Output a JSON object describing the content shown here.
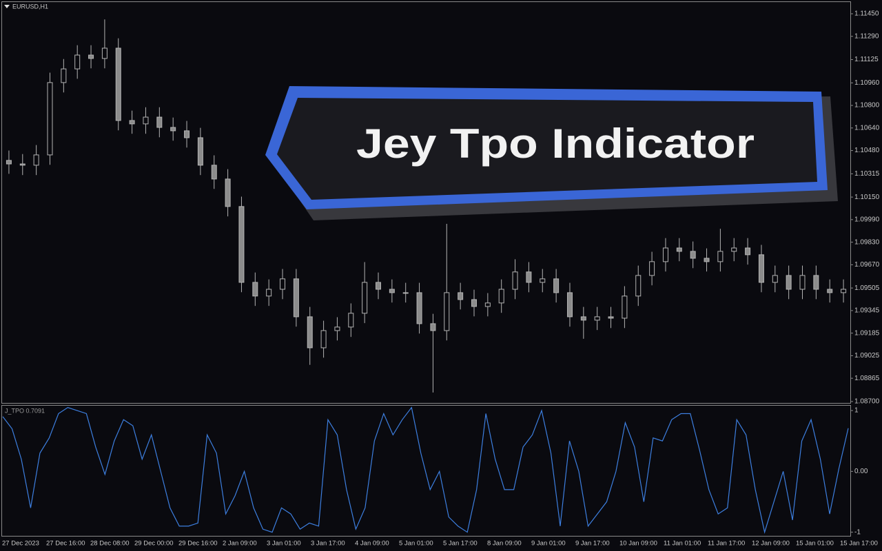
{
  "chart_data": [
    {
      "type": "candlestick",
      "title": "EURUSD,H1",
      "open": [
        1.1041,
        1.10385,
        1.10376,
        1.10449,
        1.10962,
        1.11059,
        1.11157,
        1.11133,
        1.11206,
        1.10693,
        1.10669,
        1.10717,
        1.10644,
        1.1062,
        1.10571,
        1.10376,
        1.10278,
        1.10083,
        1.09545,
        1.09448,
        1.09496,
        1.0957,
        1.09301,
        1.09081,
        1.09203,
        1.09228,
        1.09326,
        1.09545,
        1.09496,
        1.09472,
        1.09472,
        1.09252,
        1.09203,
        1.09472,
        1.09423,
        1.09374,
        1.09399,
        1.09496,
        1.09619,
        1.09545,
        1.0957,
        1.09472,
        1.09301,
        1.09277,
        1.09301,
        1.09291,
        1.09448,
        1.09594,
        1.09692,
        1.09789,
        1.09765,
        1.09716,
        1.09692,
        1.09765,
        1.09789,
        1.09741,
        1.09545,
        1.09594,
        1.09496,
        1.09594,
        1.09496,
        1.09472
      ],
      "high": [
        1.1048,
        1.10455,
        1.10519,
        1.11032,
        1.11129,
        1.11227,
        1.11227,
        1.1141,
        1.11276,
        1.10763,
        1.10787,
        1.10787,
        1.10714,
        1.1069,
        1.10641,
        1.10446,
        1.10348,
        1.10153,
        1.09615,
        1.09566,
        1.0964,
        1.0964,
        1.09371,
        1.09273,
        1.09298,
        1.09396,
        1.09689,
        1.09615,
        1.09566,
        1.09542,
        1.09542,
        1.09322,
        1.0996,
        1.09542,
        1.09493,
        1.09469,
        1.09566,
        1.09709,
        1.09689,
        1.0964,
        1.0964,
        1.09542,
        1.09371,
        1.09371,
        1.09371,
        1.09518,
        1.09664,
        1.09762,
        1.09859,
        1.09859,
        1.09835,
        1.09786,
        1.09925,
        1.09859,
        1.09859,
        1.09811,
        1.09664,
        1.09664,
        1.09664,
        1.09664,
        1.09566,
        1.09566
      ],
      "low": [
        1.10315,
        1.10306,
        1.10306,
        1.10379,
        1.10892,
        1.10989,
        1.11063,
        1.11063,
        1.10623,
        1.10599,
        1.10599,
        1.10574,
        1.1055,
        1.10501,
        1.10306,
        1.10208,
        1.10013,
        1.09475,
        1.09378,
        1.09378,
        1.09426,
        1.09231,
        1.0896,
        1.09011,
        1.09133,
        1.09158,
        1.09256,
        1.09426,
        1.09402,
        1.09402,
        1.09182,
        1.08764,
        1.09133,
        1.09353,
        1.09304,
        1.09304,
        1.09329,
        1.09426,
        1.09475,
        1.09475,
        1.09402,
        1.09231,
        1.09145,
        1.09207,
        1.09221,
        1.09221,
        1.09378,
        1.09524,
        1.09622,
        1.09695,
        1.09646,
        1.09622,
        1.09622,
        1.09695,
        1.09671,
        1.09475,
        1.09475,
        1.09426,
        1.09426,
        1.09426,
        1.09402,
        1.09402
      ],
      "close": [
        1.10385,
        1.10376,
        1.10449,
        1.10962,
        1.11059,
        1.11157,
        1.11133,
        1.11206,
        1.10693,
        1.10669,
        1.10717,
        1.10644,
        1.1062,
        1.10571,
        1.10376,
        1.10278,
        1.10083,
        1.09545,
        1.09448,
        1.09496,
        1.0957,
        1.09301,
        1.09081,
        1.09203,
        1.09228,
        1.09326,
        1.09545,
        1.09496,
        1.09472,
        1.09472,
        1.09252,
        1.09203,
        1.09472,
        1.09423,
        1.09374,
        1.09399,
        1.09496,
        1.09619,
        1.09545,
        1.0957,
        1.09472,
        1.09301,
        1.09277,
        1.09301,
        1.09291,
        1.09448,
        1.09594,
        1.09692,
        1.09789,
        1.09765,
        1.09716,
        1.09692,
        1.09765,
        1.09789,
        1.09741,
        1.09545,
        1.09594,
        1.09496,
        1.09594,
        1.09496,
        1.09472,
        1.09496
      ],
      "up_color": "#0a0a0f",
      "down_color": "#8c8c8c",
      "wick_color": "#b4b4b4",
      "ylim": [
        1.0869,
        1.11533
      ],
      "yticks": [
        {
          "value": 1.1145,
          "label": "1.11450"
        },
        {
          "value": 1.1129,
          "label": "1.11290"
        },
        1.11125,
        {
          "value": 1.1096,
          "label": "1.10960"
        },
        {
          "value": 1.108,
          "label": "1.10800"
        },
        {
          "value": 1.1064,
          "label": "1.10640"
        },
        {
          "value": 1.1048,
          "label": "1.10480"
        },
        1.10315,
        {
          "value": 1.1015,
          "label": "1.10150"
        },
        {
          "value": 1.0999,
          "label": "1.09990"
        },
        {
          "value": 1.0983,
          "label": "1.09830"
        },
        {
          "value": 1.0967,
          "label": "1.09670"
        },
        1.09505,
        1.09345,
        1.09185,
        1.09025,
        1.08865,
        {
          "value": 1.087,
          "label": "1.08700"
        }
      ],
      "x_labels": [
        "27 Dec 2023",
        "27 Dec 16:00",
        "28 Dec 08:00",
        "29 Dec 00:00",
        "29 Dec 16:00",
        "2 Jan 09:00",
        "3 Jan 01:00",
        "3 Jan 17:00",
        "4 Jan 09:00",
        "5 Jan 01:00",
        "5 Jan 17:00",
        "8 Jan 09:00",
        "9 Jan 01:00",
        "9 Jan 17:00",
        "10 Jan 09:00",
        "11 Jan 01:00",
        "11 Jan 17:00",
        "12 Jan 09:00",
        "15 Jan 01:00",
        "15 Jan 17:00"
      ]
    },
    {
      "type": "line",
      "title": "J_TPO 0.7091",
      "color": "#3d7fe0",
      "values": [
        0.9,
        0.7,
        0.2,
        -0.6,
        0.3,
        0.55,
        0.95,
        1.05,
        1.0,
        0.95,
        0.4,
        -0.05,
        0.5,
        0.85,
        0.75,
        0.2,
        0.6,
        0.0,
        -0.6,
        -0.9,
        -0.9,
        -0.85,
        0.6,
        0.3,
        -0.7,
        -0.4,
        0.0,
        -0.6,
        -0.95,
        -1.0,
        -0.6,
        -0.7,
        -0.95,
        -0.85,
        -0.9,
        0.85,
        0.6,
        -0.3,
        -0.95,
        -0.6,
        0.5,
        0.95,
        0.6,
        0.85,
        1.05,
        0.3,
        -0.3,
        0.0,
        -0.75,
        -0.9,
        -1.0,
        -0.3,
        0.95,
        0.2,
        -0.3,
        -0.3,
        0.4,
        0.6,
        1.0,
        0.3,
        -0.9,
        0.5,
        0.0,
        -0.9,
        -0.7,
        -0.5,
        0.0,
        0.8,
        0.4,
        -0.5,
        0.55,
        0.5,
        0.85,
        0.95,
        0.95,
        0.35,
        -0.3,
        -0.7,
        -0.6,
        0.85,
        0.6,
        -0.3,
        -1.0,
        -0.5,
        0.0,
        -0.8,
        0.5,
        0.85,
        0.2,
        -0.7,
        0.05,
        0.7091
      ],
      "ylim": [
        -1.06,
        1.08
      ],
      "yticks": [
        1,
        {
          "value": 0,
          "label": "0.00"
        },
        -1
      ]
    }
  ],
  "banner": {
    "text": "Jey Tpo Indicator"
  }
}
